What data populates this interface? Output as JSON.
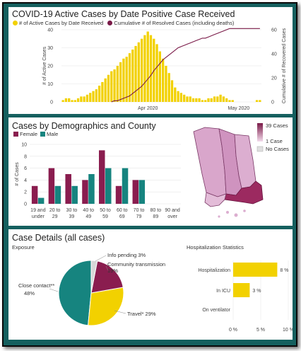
{
  "panel1": {
    "title": "COVID-19 Active Cases by Date Positive Case Received",
    "legend": [
      "# of Active Cases by Date Received",
      "Cumulative # of Resolved Cases (including deaths)"
    ],
    "colors": {
      "bar": "#f2d100",
      "line": "#7a1a48"
    }
  },
  "panel2": {
    "title": "Cases by Demographics and County",
    "legend": [
      "Female",
      "Male"
    ],
    "colors": {
      "female": "#8a1d4f",
      "male": "#16847f"
    },
    "map_legend": [
      "39 Cases",
      "1 Case",
      "No Cases"
    ]
  },
  "panel3": {
    "title": "Case Details (all cases)",
    "subtitle": "Exposure",
    "hosp_title": "Hospitalization Statistics",
    "pie_labels": [
      {
        "text": "Info pending 3%"
      },
      {
        "text": "Community transmission",
        "text2": "19%"
      },
      {
        "text": "Close contact**",
        "text2": "48%"
      },
      {
        "text": "Travel* 29%"
      }
    ]
  },
  "chart_data": [
    {
      "type": "bar",
      "title": "COVID-19 Active Cases by Date Positive Case Received",
      "ylabel": "# of Active Cases",
      "y2label": "Cumulative # of Recovered Cases",
      "ylim": [
        0,
        40
      ],
      "y2lim": [
        0,
        60
      ],
      "yticks": [
        "0",
        "10",
        "20",
        "30",
        "40"
      ],
      "y2ticks": [
        "0",
        "20",
        "40",
        "60"
      ],
      "xticks": [
        "Apr 2020",
        "May 2020"
      ],
      "series": [
        {
          "name": "# of Active Cases by Date Received",
          "values": [
            1,
            2,
            2,
            1,
            1,
            2,
            3,
            3,
            4,
            5,
            6,
            7,
            9,
            11,
            13,
            15,
            17,
            18,
            20,
            22,
            24,
            25,
            27,
            29,
            31,
            33,
            35,
            37,
            39,
            37,
            35,
            32,
            28,
            24,
            20,
            16,
            12,
            8,
            6,
            5,
            4,
            3,
            3,
            2,
            2,
            2,
            1,
            1,
            2,
            2,
            3,
            3,
            4,
            3,
            2,
            1,
            1,
            0,
            0,
            0,
            0,
            0,
            0,
            0,
            1,
            1
          ]
        },
        {
          "name": "Cumulative # of Resolved Cases (including deaths)",
          "values": [
            0,
            0,
            0,
            0,
            0,
            0,
            0,
            0,
            0,
            0,
            0,
            0,
            0,
            0,
            0,
            0,
            0,
            1,
            1,
            2,
            3,
            4,
            5,
            7,
            9,
            11,
            13,
            16,
            19,
            22,
            26,
            29,
            32,
            35,
            37,
            39,
            41,
            43,
            45,
            46,
            47,
            48,
            49,
            50,
            51,
            52,
            53,
            53,
            54,
            55,
            56,
            57,
            58,
            59,
            60,
            61,
            61,
            61,
            61,
            61,
            61,
            61,
            61,
            61,
            61,
            61
          ]
        }
      ]
    },
    {
      "type": "bar",
      "title": "Cases by Demographics and County",
      "ylabel": "# of Cases",
      "ylim": [
        0,
        10
      ],
      "yticks": [
        "0",
        "2",
        "4",
        "6",
        "8",
        "10"
      ],
      "categories": [
        [
          "19 and",
          "under"
        ],
        [
          "20 to",
          "29"
        ],
        [
          "30 to",
          "39"
        ],
        [
          "40 to",
          "49"
        ],
        [
          "50 to",
          "59"
        ],
        [
          "60 to",
          "69"
        ],
        [
          "70 to",
          "79"
        ],
        [
          "80 to",
          "89"
        ],
        [
          "90 and",
          "over"
        ]
      ],
      "series": [
        {
          "name": "Female",
          "values": [
            3,
            6,
            5,
            4,
            9,
            3,
            4,
            0,
            0
          ]
        },
        {
          "name": "Male",
          "values": [
            1,
            3,
            3,
            5,
            6,
            6,
            4,
            0,
            0
          ]
        }
      ]
    },
    {
      "type": "pie",
      "title": "Exposure",
      "categories": [
        "Info pending",
        "Community transmission",
        "Travel*",
        "Close contact**"
      ],
      "values": [
        3,
        19,
        29,
        48
      ],
      "colors": [
        "#d8d8d8",
        "#8a1d4f",
        "#f2d100",
        "#16847f"
      ]
    },
    {
      "type": "bar",
      "title": "Hospitalization Statistics",
      "categories": [
        "Hospitalization",
        "In ICU",
        "On ventilator"
      ],
      "values": [
        8,
        3,
        0
      ],
      "value_labels": [
        "8 %",
        "3 %",
        ""
      ],
      "xlim": [
        0,
        10
      ],
      "xticks": [
        "0 %",
        "5 %",
        "10 %"
      ]
    }
  ]
}
